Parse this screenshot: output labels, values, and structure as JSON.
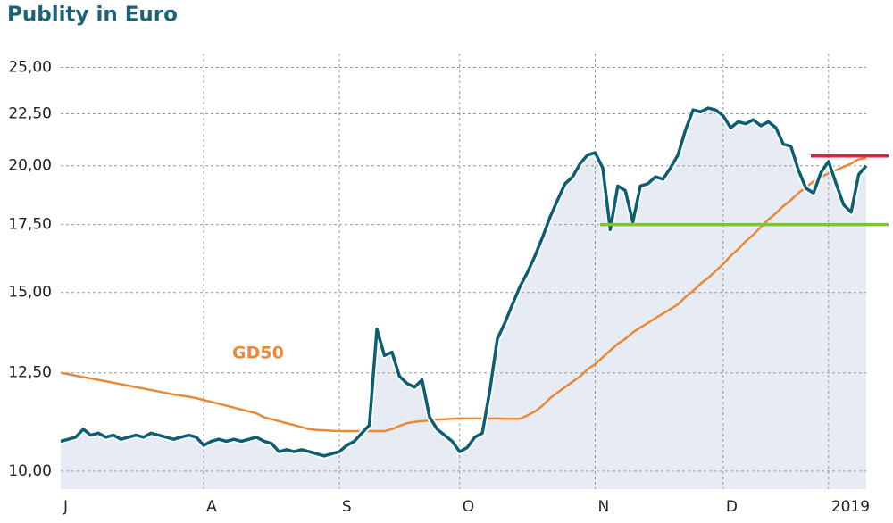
{
  "chart_data": {
    "type": "line",
    "title": "Publity in Euro",
    "categories": [
      "J",
      null,
      null,
      null,
      null,
      null,
      null,
      null,
      null,
      null,
      null,
      null,
      null,
      null,
      null,
      null,
      null,
      null,
      null,
      "A",
      null,
      null,
      null,
      null,
      null,
      null,
      null,
      null,
      null,
      null,
      null,
      null,
      null,
      null,
      null,
      null,
      null,
      "S",
      null,
      null,
      null,
      null,
      null,
      null,
      null,
      null,
      null,
      null,
      null,
      null,
      null,
      null,
      null,
      "O",
      null,
      null,
      null,
      null,
      null,
      null,
      null,
      null,
      null,
      null,
      null,
      null,
      null,
      null,
      null,
      null,
      null,
      "N",
      null,
      null,
      null,
      null,
      null,
      null,
      null,
      null,
      null,
      null,
      null,
      null,
      null,
      null,
      null,
      null,
      "D",
      null,
      null,
      null,
      null,
      null,
      null,
      null,
      null,
      null,
      null,
      null,
      null,
      null,
      "2019",
      null,
      null,
      null,
      null,
      null
    ],
    "series": [
      {
        "name": "Publity",
        "color": "#0d5e72",
        "area_color": "#e7ebf3",
        "values": [
          10.7,
          10.75,
          10.8,
          11.0,
          10.85,
          10.9,
          10.8,
          10.85,
          10.75,
          10.8,
          10.85,
          10.8,
          10.9,
          10.85,
          10.8,
          10.75,
          10.8,
          10.85,
          10.8,
          10.6,
          10.7,
          10.75,
          10.7,
          10.75,
          10.7,
          10.75,
          10.8,
          10.7,
          10.65,
          10.45,
          10.5,
          10.45,
          10.5,
          10.45,
          10.4,
          10.35,
          10.4,
          10.45,
          10.6,
          10.7,
          10.9,
          11.1,
          13.8,
          13.0,
          13.1,
          12.4,
          12.2,
          12.1,
          12.3,
          11.3,
          11.0,
          10.85,
          10.7,
          10.45,
          10.55,
          10.8,
          10.9,
          12.0,
          13.5,
          14.0,
          14.6,
          15.2,
          15.7,
          16.3,
          17.0,
          17.8,
          18.5,
          19.2,
          19.5,
          20.1,
          20.5,
          20.6,
          19.9,
          17.3,
          19.1,
          18.9,
          17.6,
          19.1,
          19.2,
          19.5,
          19.4,
          19.9,
          20.5,
          21.7,
          22.7,
          22.6,
          22.8,
          22.7,
          22.4,
          21.8,
          22.1,
          22.0,
          22.2,
          21.9,
          22.1,
          21.8,
          21.0,
          20.9,
          19.8,
          19.0,
          18.8,
          19.7,
          20.2,
          19.2,
          18.3,
          18.0,
          19.6,
          20.0
        ]
      },
      {
        "name": "GD50",
        "color": "#e8893a",
        "values": [
          12.5,
          12.46,
          12.42,
          12.38,
          12.34,
          12.3,
          12.26,
          12.22,
          12.18,
          12.14,
          12.1,
          12.06,
          12.02,
          11.98,
          11.94,
          11.9,
          11.87,
          11.84,
          11.8,
          11.75,
          11.7,
          11.65,
          11.6,
          11.55,
          11.5,
          11.45,
          11.4,
          11.3,
          11.25,
          11.2,
          11.15,
          11.1,
          11.05,
          11.0,
          10.98,
          10.97,
          10.96,
          10.95,
          10.95,
          10.95,
          10.95,
          10.95,
          10.95,
          10.95,
          11.0,
          11.08,
          11.15,
          11.18,
          11.2,
          11.22,
          11.24,
          11.25,
          11.26,
          11.27,
          11.27,
          11.27,
          11.27,
          11.27,
          11.27,
          11.26,
          11.26,
          11.26,
          11.35,
          11.45,
          11.6,
          11.8,
          11.95,
          12.1,
          12.25,
          12.4,
          12.6,
          12.75,
          12.95,
          13.15,
          13.35,
          13.5,
          13.7,
          13.85,
          14.0,
          14.15,
          14.3,
          14.45,
          14.6,
          14.85,
          15.05,
          15.3,
          15.5,
          15.75,
          16.0,
          16.3,
          16.55,
          16.85,
          17.1,
          17.4,
          17.7,
          17.95,
          18.25,
          18.5,
          18.8,
          19.05,
          19.3,
          19.5,
          19.65,
          19.8,
          19.95,
          20.1,
          20.3,
          20.35
        ]
      }
    ],
    "reference_lines": [
      {
        "value": 20.45,
        "color": "#d6263f"
      },
      {
        "value": 17.5,
        "color": "#7cc242"
      }
    ],
    "ylim": [
      9.6,
      25.8
    ],
    "log_scale": true,
    "yticks": [
      {
        "value": 10,
        "label": "10,00"
      },
      {
        "value": 12.5,
        "label": "12,50"
      },
      {
        "value": 15,
        "label": "15,00"
      },
      {
        "value": 17.5,
        "label": "17,50"
      },
      {
        "value": 20,
        "label": "20,00"
      },
      {
        "value": 22.5,
        "label": "22,50"
      },
      {
        "value": 25,
        "label": "25,00"
      }
    ],
    "grid": true,
    "annotations": [
      {
        "text": "GD50"
      }
    ]
  }
}
